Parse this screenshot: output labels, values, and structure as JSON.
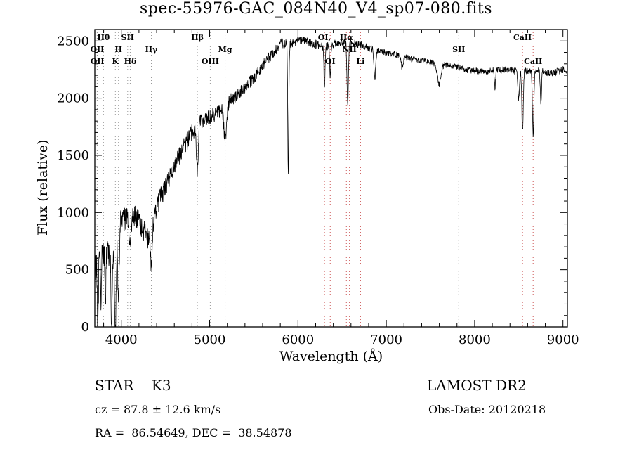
{
  "chart_data": {
    "type": "line",
    "title": "spec-55976-GAC_084N40_V4_sp07-080.fits",
    "xlabel": "Wavelength (Å)",
    "ylabel": "Flux (relative)",
    "xlim": [
      3700,
      9050
    ],
    "ylim": [
      0,
      2600
    ],
    "x_ticks": [
      4000,
      5000,
      6000,
      7000,
      8000,
      9000
    ],
    "y_ticks": [
      0,
      500,
      1000,
      1500,
      2000,
      2500
    ],
    "x_minor_step": 200,
    "y_minor_step": 100,
    "legend": "none",
    "grid": false,
    "series_color": "#000000",
    "continuum_points": [
      [
        3700,
        480
      ],
      [
        3750,
        700
      ],
      [
        3800,
        620
      ],
      [
        3850,
        660
      ],
      [
        3900,
        560
      ],
      [
        3950,
        820
      ],
      [
        4000,
        930
      ],
      [
        4050,
        950
      ],
      [
        4100,
        960
      ],
      [
        4150,
        980
      ],
      [
        4200,
        930
      ],
      [
        4250,
        850
      ],
      [
        4300,
        760
      ],
      [
        4350,
        900
      ],
      [
        4400,
        1050
      ],
      [
        4500,
        1230
      ],
      [
        4600,
        1400
      ],
      [
        4700,
        1560
      ],
      [
        4800,
        1700
      ],
      [
        4900,
        1800
      ],
      [
        5000,
        1830
      ],
      [
        5100,
        1880
      ],
      [
        5200,
        1950
      ],
      [
        5300,
        2020
      ],
      [
        5400,
        2100
      ],
      [
        5500,
        2180
      ],
      [
        5600,
        2280
      ],
      [
        5700,
        2380
      ],
      [
        5800,
        2480
      ],
      [
        5900,
        2470
      ],
      [
        6000,
        2510
      ],
      [
        6100,
        2500
      ],
      [
        6200,
        2470
      ],
      [
        6300,
        2450
      ],
      [
        6400,
        2470
      ],
      [
        6500,
        2490
      ],
      [
        6600,
        2480
      ],
      [
        6700,
        2470
      ],
      [
        6800,
        2440
      ],
      [
        6900,
        2420
      ],
      [
        7000,
        2400
      ],
      [
        7100,
        2380
      ],
      [
        7200,
        2360
      ],
      [
        7300,
        2340
      ],
      [
        7400,
        2330
      ],
      [
        7500,
        2310
      ],
      [
        7600,
        2300
      ],
      [
        7700,
        2290
      ],
      [
        7800,
        2270
      ],
      [
        7900,
        2250
      ],
      [
        8000,
        2240
      ],
      [
        8100,
        2230
      ],
      [
        8200,
        2240
      ],
      [
        8300,
        2250
      ],
      [
        8400,
        2250
      ],
      [
        8500,
        2230
      ],
      [
        8600,
        2240
      ],
      [
        8700,
        2250
      ],
      [
        8800,
        2230
      ],
      [
        8900,
        2220
      ],
      [
        9000,
        2250
      ],
      [
        9050,
        2240
      ]
    ],
    "absorption_features": [
      {
        "c": 3735,
        "d": 700,
        "w": 6
      },
      {
        "c": 3770,
        "d": 500,
        "w": 5
      },
      {
        "c": 3820,
        "d": 450,
        "w": 5
      },
      {
        "c": 3889,
        "d": 600,
        "w": 6
      },
      {
        "c": 3933,
        "d": 800,
        "w": 8
      },
      {
        "c": 3968,
        "d": 700,
        "w": 8
      },
      {
        "c": 4101,
        "d": 280,
        "w": 9
      },
      {
        "c": 4340,
        "d": 320,
        "w": 10
      },
      {
        "c": 4861,
        "d": 380,
        "w": 11
      },
      {
        "c": 5175,
        "d": 280,
        "w": 16
      },
      {
        "c": 5890,
        "d": 1100,
        "w": 6
      },
      {
        "c": 6300,
        "d": 330,
        "w": 7
      },
      {
        "c": 6365,
        "d": 300,
        "w": 6
      },
      {
        "c": 6563,
        "d": 550,
        "w": 8
      },
      {
        "c": 6870,
        "d": 250,
        "w": 10
      },
      {
        "c": 7180,
        "d": 100,
        "w": 12
      },
      {
        "c": 7600,
        "d": 180,
        "w": 20
      },
      {
        "c": 8230,
        "d": 150,
        "w": 6
      },
      {
        "c": 8498,
        "d": 250,
        "w": 8
      },
      {
        "c": 8542,
        "d": 520,
        "w": 8
      },
      {
        "c": 8662,
        "d": 560,
        "w": 8
      },
      {
        "c": 8750,
        "d": 300,
        "w": 7
      }
    ],
    "noise_profile": [
      [
        3700,
        140
      ],
      [
        4000,
        110
      ],
      [
        4300,
        95
      ],
      [
        4700,
        80
      ],
      [
        5000,
        70
      ],
      [
        5500,
        55
      ],
      [
        6000,
        40
      ],
      [
        6500,
        35
      ],
      [
        7000,
        30
      ],
      [
        7500,
        28
      ],
      [
        8000,
        28
      ],
      [
        8500,
        30
      ],
      [
        9050,
        32
      ]
    ],
    "sample_step": 3,
    "spectral_lines": [
      {
        "label": "Hθ",
        "wl": 3798,
        "row": 1,
        "color": "#999999"
      },
      {
        "label": "OII",
        "wl": 3727,
        "row": 2,
        "color": "#999999"
      },
      {
        "label": "OII",
        "wl": 3729,
        "row": 3,
        "color": "#999999"
      },
      {
        "label": "H",
        "wl": 3968,
        "row": 2,
        "color": "#999999"
      },
      {
        "label": "K",
        "wl": 3933,
        "row": 3,
        "color": "#999999"
      },
      {
        "label": "SII",
        "wl": 4072,
        "row": 1,
        "color": "#999999"
      },
      {
        "label": "Hδ",
        "wl": 4101,
        "row": 3,
        "color": "#999999"
      },
      {
        "label": "Hγ",
        "wl": 4340,
        "row": 2,
        "color": "#999999"
      },
      {
        "label": "Hβ",
        "wl": 4861,
        "row": 1,
        "color": "#999999"
      },
      {
        "label": "OIII",
        "wl": 5007,
        "row": 3,
        "color": "#999999"
      },
      {
        "label": "Mg",
        "wl": 5175,
        "row": 2,
        "color": "#999999"
      },
      {
        "label": "OI,",
        "wl": 6300,
        "row": 1,
        "color": "#cc5555"
      },
      {
        "label": "OI",
        "wl": 6365,
        "row": 3,
        "color": "#cc5555"
      },
      {
        "label": "Hα",
        "wl": 6548,
        "row": 1,
        "color": "#cc5555"
      },
      {
        "label": "NII",
        "wl": 6583,
        "row": 2,
        "color": "#cc5555"
      },
      {
        "label": "Li",
        "wl": 6708,
        "row": 3,
        "color": "#cc5555"
      },
      {
        "label": "SII",
        "wl": 7820,
        "row": 2,
        "color": "#999999"
      },
      {
        "label": "CaII",
        "wl": 8542,
        "row": 1,
        "color": "#cc5555"
      },
      {
        "label": "CaII",
        "wl": 8662,
        "row": 3,
        "color": "#cc5555"
      }
    ]
  },
  "annotations": {
    "class_line": "STAR    K3",
    "survey": "LAMOST DR2",
    "cz_line": "cz = 87.8 ± 12.6 km/s",
    "obs_date": "Obs-Date: 20120218",
    "ra_dec": "RA =  86.54649, DEC =  38.54878"
  }
}
